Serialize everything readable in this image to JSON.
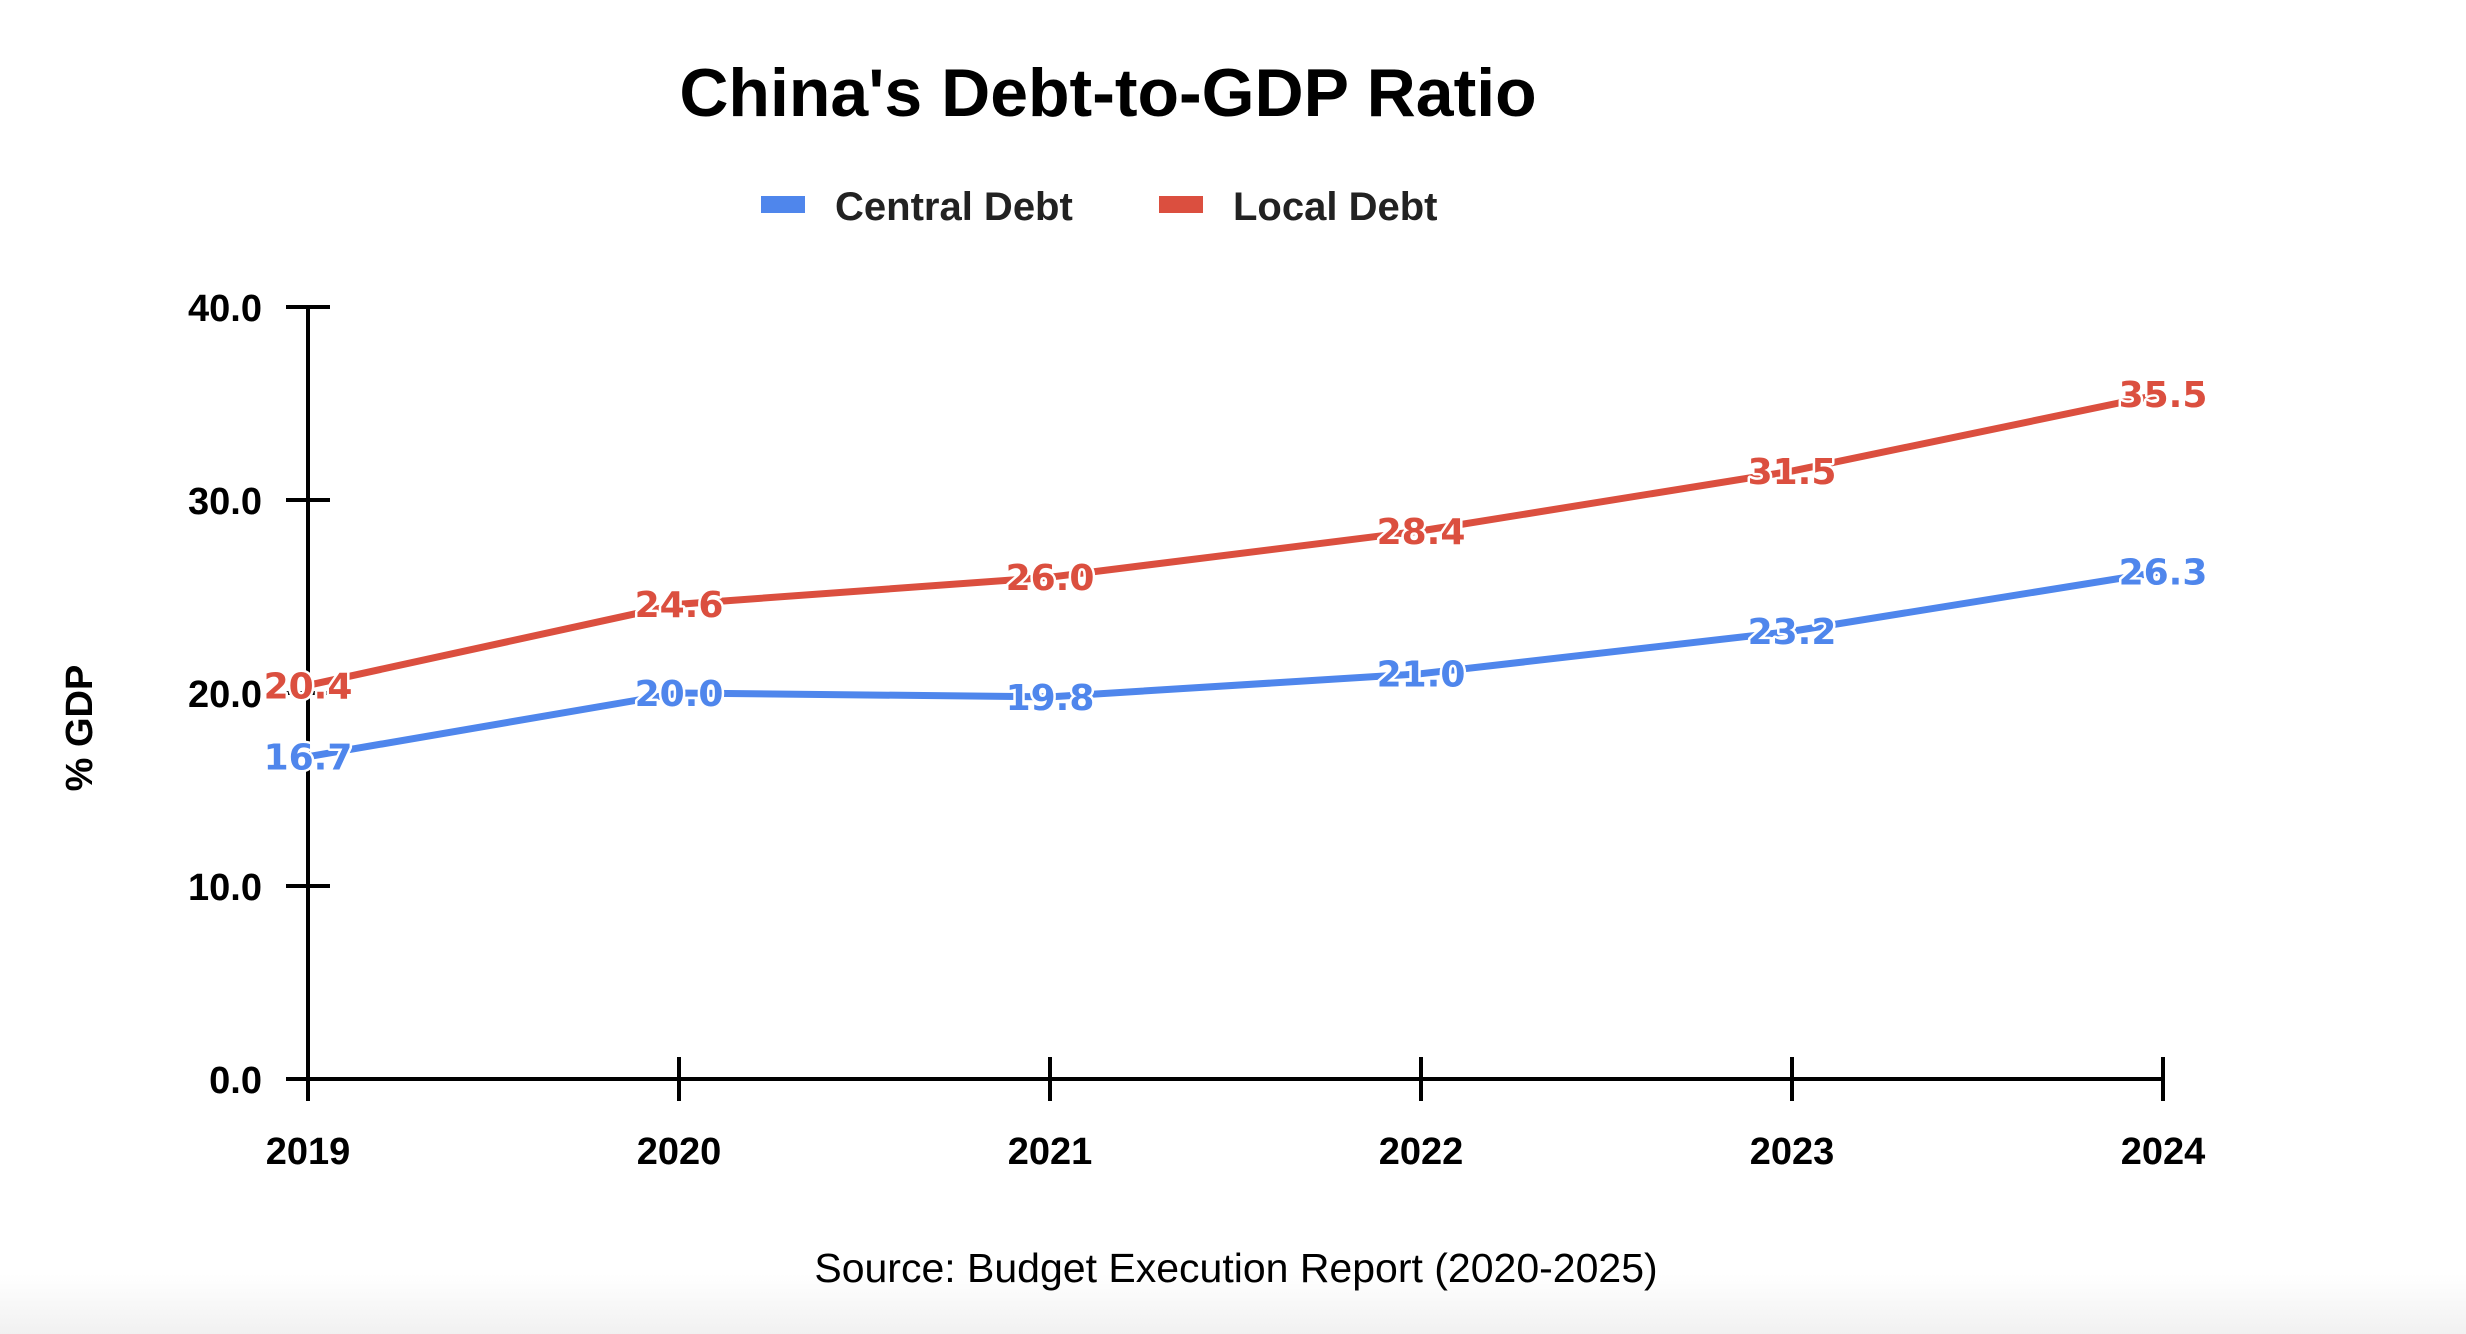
{
  "chart_data": {
    "type": "line",
    "title": "China's Debt-to-GDP Ratio",
    "xlabel": "",
    "ylabel": "% GDP",
    "categories": [
      "2019",
      "2020",
      "2021",
      "2022",
      "2023",
      "2024"
    ],
    "series": [
      {
        "name": "Central Debt",
        "color": "#4F86EC",
        "values": [
          16.7,
          20.0,
          19.8,
          21.0,
          23.2,
          26.3
        ],
        "labels": [
          "16.7",
          "20.0",
          "19.8",
          "21.0",
          "23.2",
          "26.3"
        ]
      },
      {
        "name": "Local Debt",
        "color": "#DB4F3F",
        "values": [
          20.4,
          24.6,
          26.0,
          28.4,
          31.5,
          35.5
        ],
        "labels": [
          "20.4",
          "24.6",
          "26.0",
          "28.4",
          "31.5",
          "35.5"
        ]
      }
    ],
    "ylim": [
      0,
      40
    ],
    "yticks": [
      0,
      10,
      20,
      30,
      40
    ],
    "ytick_labels": [
      "0.0",
      "10.0",
      "20.0",
      "30.0",
      "40.0"
    ],
    "grid": false,
    "legend": "top-center",
    "data_labels": true,
    "source": "Source: Budget Execution Report (2020-2025)"
  }
}
